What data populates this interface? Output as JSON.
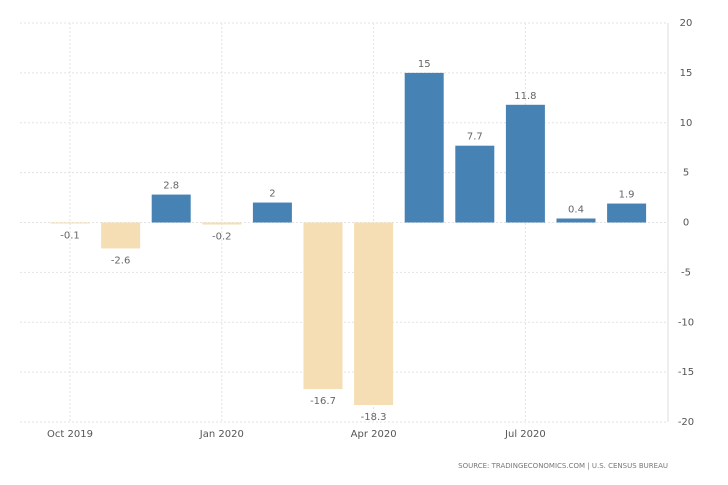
{
  "chart_data": {
    "type": "bar",
    "categories": [
      "Oct 2019",
      null,
      null,
      "Jan 2020",
      null,
      null,
      "Apr 2020",
      null,
      null,
      "Jul 2020",
      null,
      null
    ],
    "values": [
      -0.1,
      -2.6,
      2.8,
      -0.2,
      2,
      -16.7,
      -18.3,
      15,
      7.7,
      11.8,
      0.4,
      1.9
    ],
    "positive_color": "#4682b4",
    "negative_color": "#f5deb3",
    "ylim": [
      -20,
      20
    ],
    "yticks": [
      -20,
      -15,
      -10,
      -5,
      0,
      5,
      10,
      15,
      20
    ],
    "grid": true,
    "source": "SOURCE: TRADINGECONOMICS.COM | U.S. CENSUS BUREAU"
  }
}
